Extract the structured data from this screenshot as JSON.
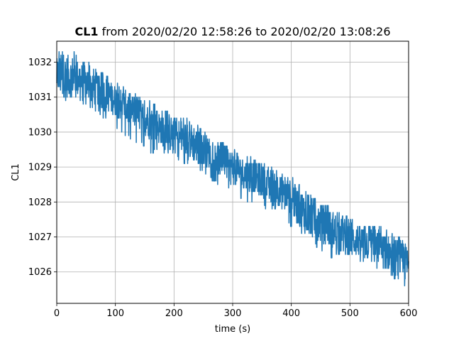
{
  "chart_data": {
    "type": "line",
    "title_bold": "CL1",
    "title_rest": " from 2020/02/20 12:58:26 to 2020/02/20 13:08:26",
    "xlabel": "time (s)",
    "ylabel": "CL1",
    "xlim": [
      0,
      600
    ],
    "ylim": [
      1025.1,
      1032.6
    ],
    "xticks": [
      0,
      100,
      200,
      300,
      400,
      500,
      600
    ],
    "yticks": [
      1026,
      1027,
      1028,
      1029,
      1030,
      1031,
      1032
    ],
    "grid": true,
    "line_color": "#1f77b4",
    "series": [
      {
        "x": [
          0,
          10,
          20,
          30,
          40,
          50,
          60,
          70,
          80,
          90,
          100,
          110,
          120,
          130,
          140,
          150,
          160,
          170,
          180,
          190,
          200,
          210,
          220,
          230,
          240,
          250,
          260,
          270,
          280,
          290,
          300,
          310,
          320,
          330,
          340,
          350,
          360,
          370,
          380,
          390,
          400,
          410,
          420,
          430,
          440,
          450,
          460,
          470,
          480,
          490,
          500,
          510,
          520,
          530,
          540,
          550,
          560,
          570,
          580,
          590,
          600
        ],
        "y_mid": [
          1031.6,
          1031.6,
          1031.6,
          1031.6,
          1031.5,
          1031.4,
          1031.3,
          1031.2,
          1031.1,
          1031.0,
          1030.9,
          1030.8,
          1030.7,
          1030.6,
          1030.5,
          1030.4,
          1030.3,
          1030.2,
          1030.1,
          1030.0,
          1029.9,
          1029.85,
          1029.8,
          1029.7,
          1029.6,
          1029.5,
          1029.4,
          1029.3,
          1029.2,
          1029.1,
          1029.0,
          1028.9,
          1028.8,
          1028.75,
          1028.7,
          1028.6,
          1028.5,
          1028.4,
          1028.3,
          1028.2,
          1028.1,
          1027.9,
          1027.7,
          1027.6,
          1027.5,
          1027.4,
          1027.3,
          1027.2,
          1027.1,
          1027.0,
          1026.95,
          1026.9,
          1026.85,
          1026.8,
          1026.75,
          1026.7,
          1026.6,
          1026.5,
          1026.4,
          1026.3,
          1026.2
        ],
        "y_low": [
          1031.0,
          1030.9,
          1030.9,
          1031.0,
          1030.9,
          1030.8,
          1030.7,
          1030.6,
          1030.4,
          1030.3,
          1030.2,
          1030.0,
          1029.9,
          1029.8,
          1029.7,
          1029.6,
          1029.4,
          1029.5,
          1029.4,
          1029.4,
          1029.4,
          1029.2,
          1029.1,
          1029.1,
          1028.9,
          1028.9,
          1028.7,
          1028.6,
          1028.4,
          1028.4,
          1028.3,
          1028.1,
          1028.1,
          1028.0,
          1027.9,
          1027.9,
          1027.8,
          1027.8,
          1027.7,
          1027.6,
          1027.3,
          1027.0,
          1026.9,
          1026.8,
          1026.8,
          1026.6,
          1026.5,
          1026.4,
          1026.5,
          1026.4,
          1026.4,
          1026.4,
          1026.3,
          1026.3,
          1026.2,
          1026.1,
          1026.1,
          1025.9,
          1025.8,
          1025.7,
          1025.5
        ],
        "y_high": [
          1032.3,
          1032.3,
          1032.3,
          1032.3,
          1032.1,
          1032.0,
          1031.9,
          1031.7,
          1031.7,
          1031.5,
          1031.4,
          1031.3,
          1031.3,
          1031.1,
          1031.0,
          1030.9,
          1030.9,
          1030.7,
          1030.7,
          1030.6,
          1030.4,
          1030.4,
          1030.4,
          1030.3,
          1030.2,
          1030.0,
          1029.9,
          1029.8,
          1029.7,
          1029.6,
          1029.6,
          1029.4,
          1029.3,
          1029.3,
          1029.2,
          1029.1,
          1029.0,
          1029.0,
          1028.8,
          1028.7,
          1028.7,
          1028.5,
          1028.4,
          1028.2,
          1028.1,
          1028.0,
          1027.9,
          1027.8,
          1027.7,
          1027.6,
          1027.5,
          1027.5,
          1027.4,
          1027.3,
          1027.3,
          1027.3,
          1027.2,
          1027.1,
          1027.0,
          1026.9,
          1026.8
        ]
      }
    ]
  }
}
